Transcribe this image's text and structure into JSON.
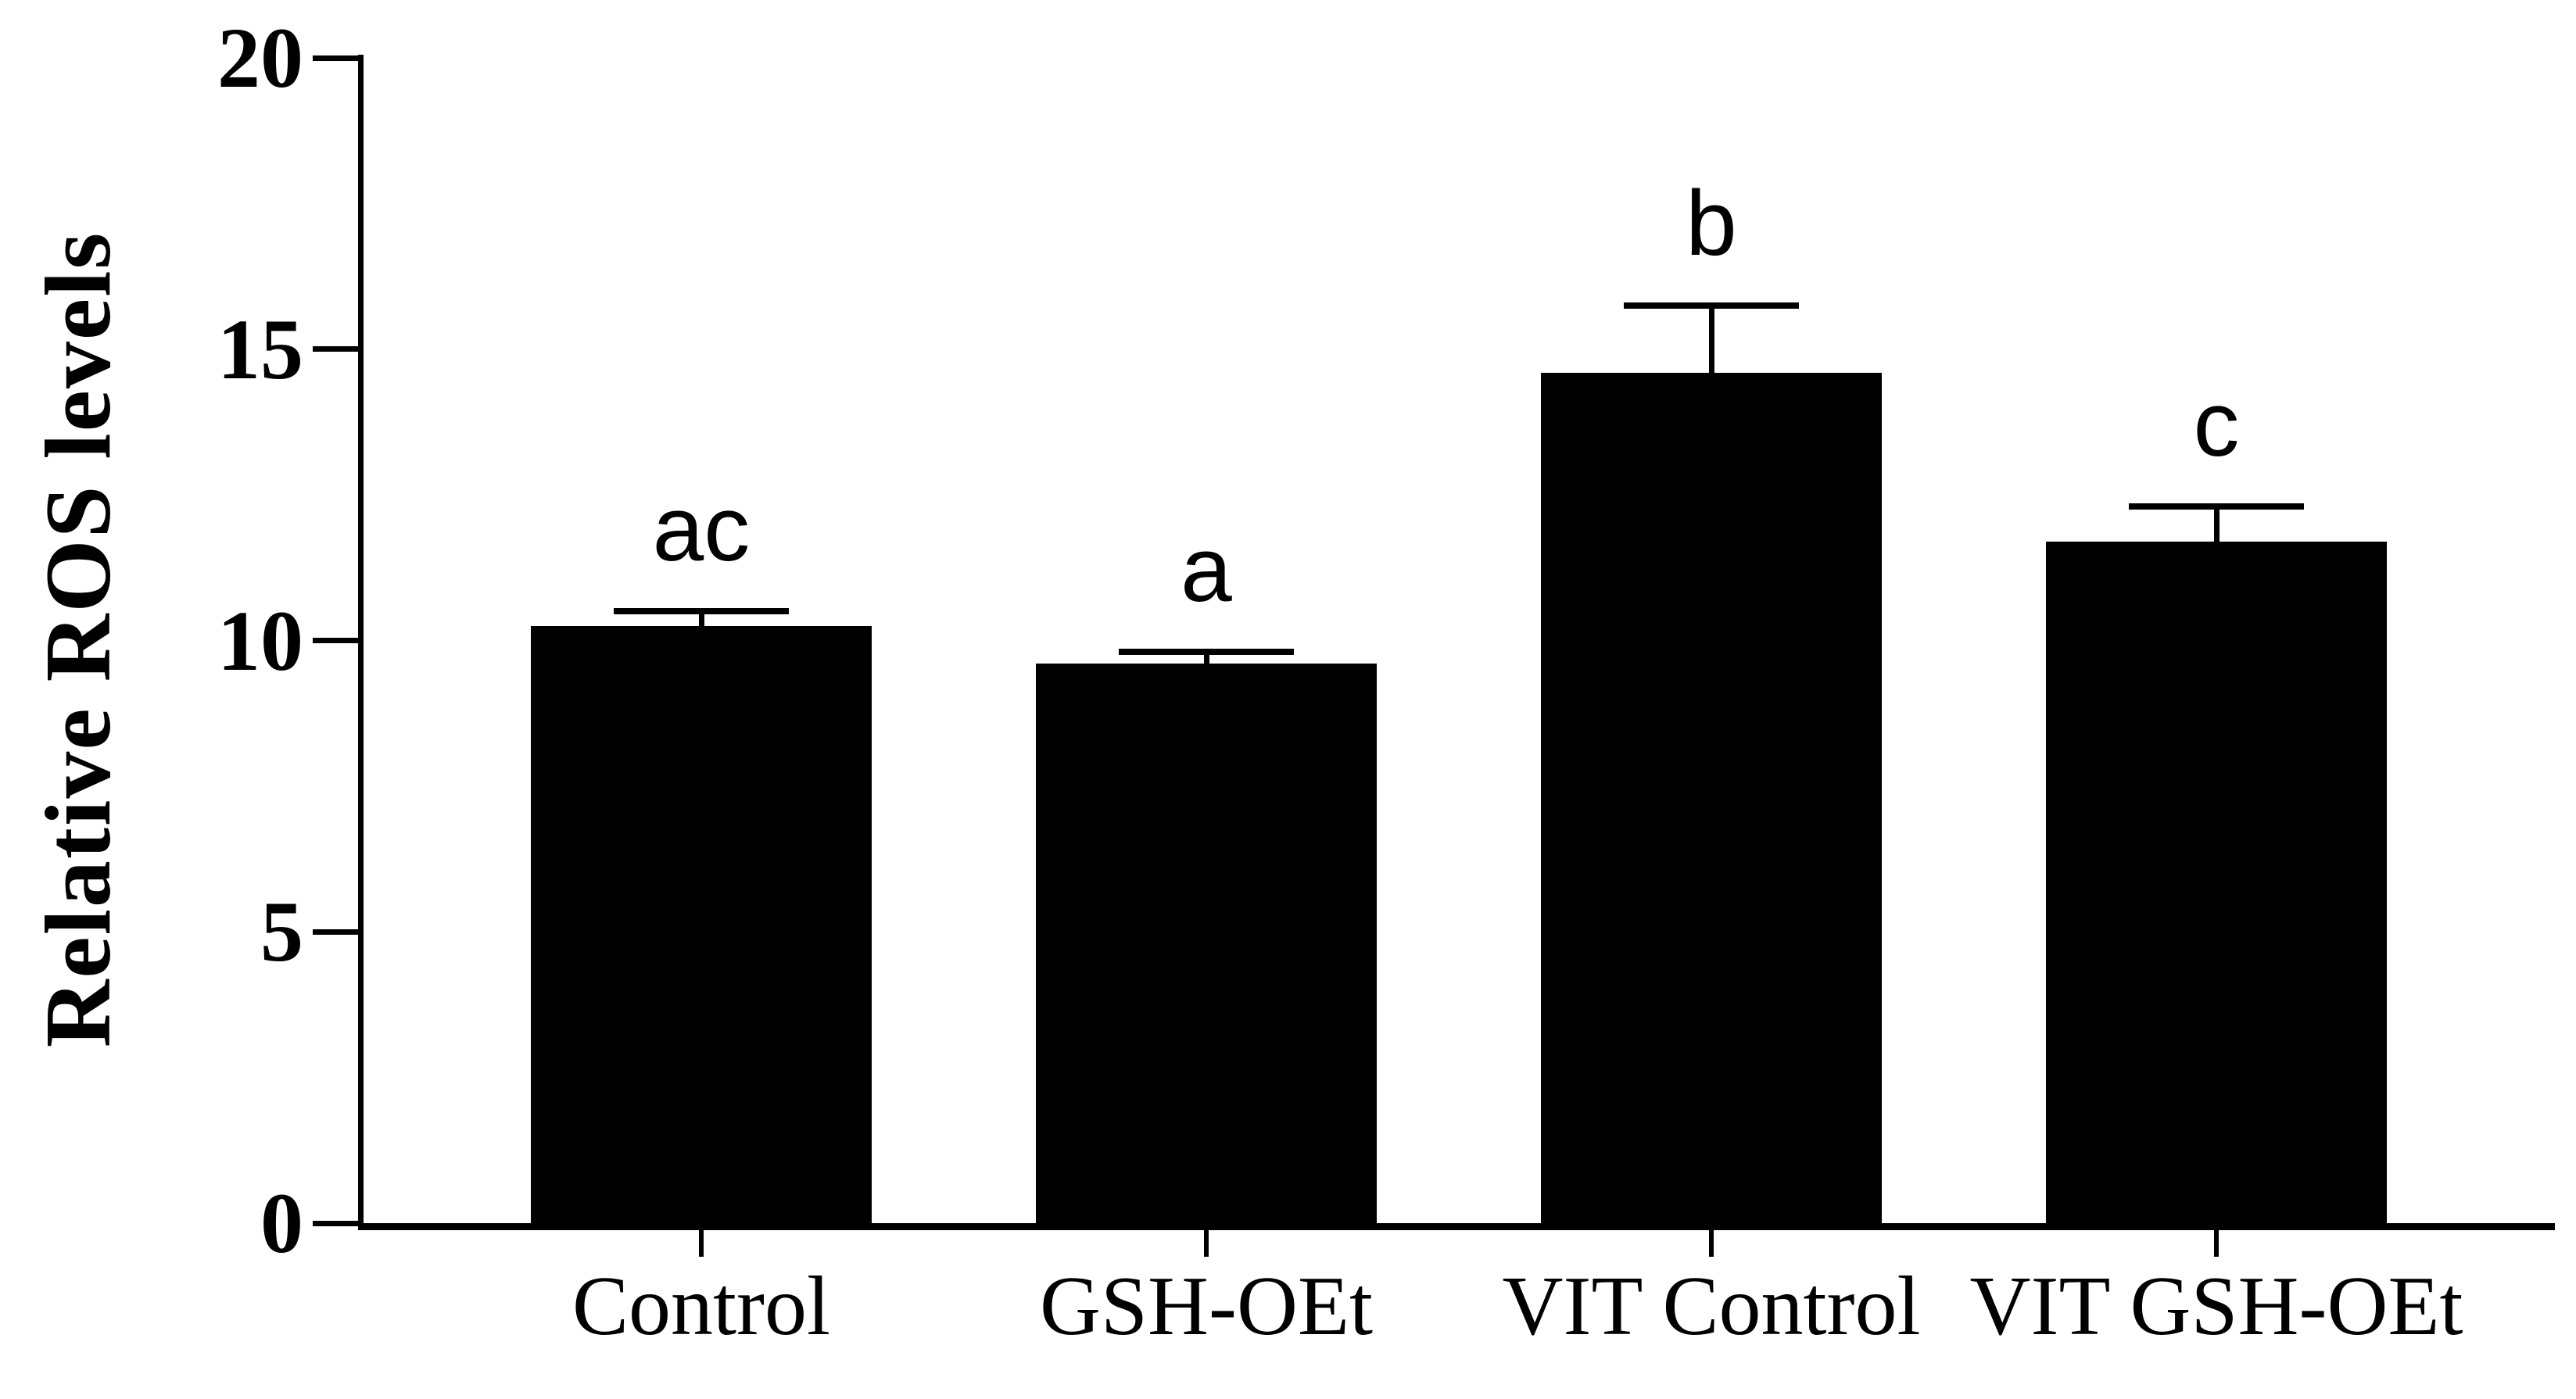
{
  "figure": {
    "background_color": "#ffffff",
    "ink_color": "#000000"
  },
  "chart_data": {
    "type": "bar",
    "title": "",
    "xlabel": "",
    "ylabel": "Relative ROS levels",
    "categories": [
      "Control",
      "GSH-OEt",
      "VIT Control",
      "VIT GSH-OEt"
    ],
    "values": [
      10.25,
      9.6,
      14.6,
      11.7
    ],
    "errors_upper": [
      0.25,
      0.2,
      1.15,
      0.6
    ],
    "error_bar_style": "upper cap only",
    "sig_letters": [
      "ac",
      "a",
      "b",
      "c"
    ],
    "ylim": [
      0,
      20
    ],
    "yticks": [
      0,
      5,
      10,
      15,
      20
    ],
    "bar_color": "#000000",
    "grid": false,
    "legend": null
  }
}
